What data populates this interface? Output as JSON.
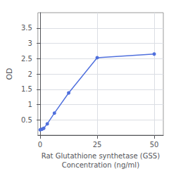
{
  "chart_data": {
    "type": "line",
    "xlabel": "Rat Glutathione synthetase (GSS)\nConcentration (ng/ml)",
    "ylabel": "OD",
    "x": [
      0,
      0.78,
      1.563,
      3.125,
      6.25,
      12.5,
      25,
      50
    ],
    "values": [
      0.175,
      0.195,
      0.225,
      0.37,
      0.72,
      1.38,
      2.53,
      2.65
    ],
    "xlim": [
      -1,
      54
    ],
    "xticks": [
      0,
      25,
      50
    ],
    "ylim": [
      0,
      4.0
    ],
    "yticks": [
      0.5,
      1.0,
      1.5,
      2.0,
      2.5,
      3.0,
      3.5
    ],
    "grid": true,
    "marker": "circle"
  }
}
